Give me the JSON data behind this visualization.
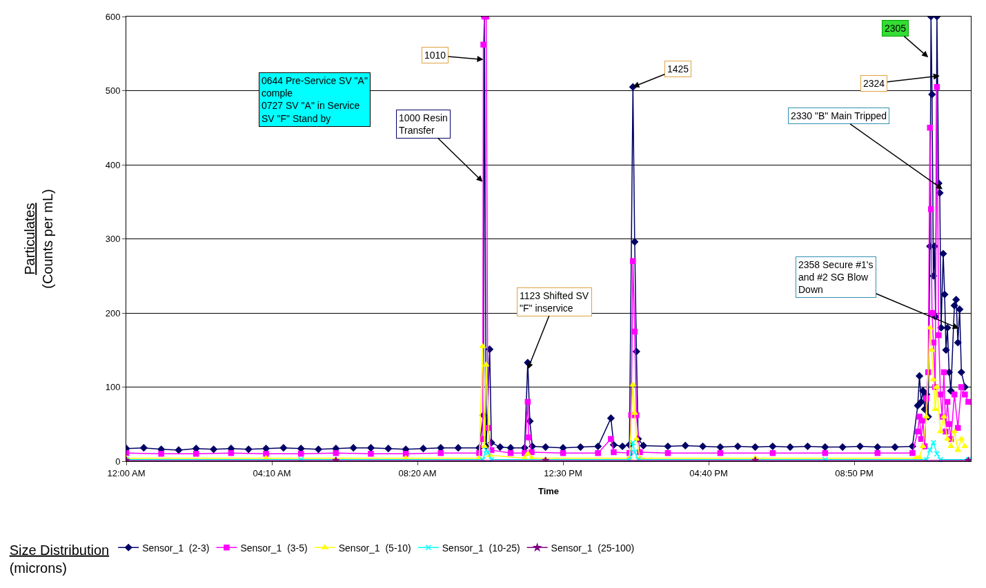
{
  "chart_data": {
    "type": "line",
    "xlabel": "Time",
    "ylabel": "Particulates\n(Counts per mL)",
    "legend_title": "Size Distribution\n(microns)",
    "xlim": [
      0,
      24.17
    ],
    "xticks": [
      {
        "value": 0,
        "label": "12:00 AM"
      },
      {
        "value": 4.1667,
        "label": "04:10 AM"
      },
      {
        "value": 8.3333,
        "label": "08:20 AM"
      },
      {
        "value": 12.5,
        "label": "12:30 PM"
      },
      {
        "value": 16.6667,
        "label": "04:40 PM"
      },
      {
        "value": 20.8333,
        "label": "08:50 PM"
      }
    ],
    "ylim": [
      0,
      600
    ],
    "yticks": [
      0,
      100,
      200,
      300,
      400,
      500,
      600
    ],
    "grid": "y",
    "legend": "bottom",
    "series": [
      {
        "name": "Sensor_1  (2-3)",
        "color": "#000066",
        "marker": "diamond",
        "x": [
          0,
          0.5,
          1,
          1.5,
          2,
          2.5,
          3,
          3.5,
          4,
          4.5,
          5,
          5.5,
          6,
          6.5,
          7,
          7.5,
          8,
          8.5,
          9,
          9.5,
          10.1,
          10.22,
          10.25,
          10.3,
          10.4,
          10.45,
          10.7,
          11.0,
          11.4,
          11.49,
          11.55,
          11.62,
          12,
          12.5,
          13,
          13.5,
          13.87,
          13.95,
          14.2,
          14.4,
          14.5,
          14.55,
          14.6,
          14.65,
          14.8,
          15.5,
          16,
          16.5,
          17,
          17.5,
          18,
          18.5,
          19,
          19.5,
          20,
          20.5,
          21,
          21.5,
          22,
          22.5,
          22.65,
          22.7,
          22.75,
          22.8,
          22.85,
          22.9,
          22.95,
          23.0,
          23.03,
          23.06,
          23.1,
          23.13,
          23.16,
          23.2,
          23.25,
          23.28,
          23.32,
          23.38,
          23.42,
          23.46,
          23.5,
          23.55,
          23.6,
          23.7,
          23.75,
          23.8,
          23.85,
          23.9,
          24.0
        ],
        "values": [
          17,
          18,
          16,
          15,
          17,
          16,
          17,
          16,
          17,
          18,
          17,
          16,
          17,
          18,
          18,
          17,
          16,
          17,
          18,
          18,
          18,
          62,
          600,
          20,
          151,
          25,
          19,
          18,
          18,
          133,
          54,
          20,
          19,
          18,
          19,
          20,
          58,
          22,
          20,
          22,
          505,
          296,
          148,
          30,
          21,
          20,
          21,
          20,
          19,
          20,
          19,
          20,
          19,
          20,
          19,
          19,
          20,
          19,
          19,
          20,
          75,
          115,
          80,
          95,
          70,
          90,
          60,
          290,
          600,
          495,
          250,
          290,
          195,
          600,
          375,
          362,
          180,
          280,
          225,
          150,
          180,
          120,
          95,
          210,
          218,
          160,
          205,
          120,
          100
        ]
      },
      {
        "name": "Sensor_1  (3-5)",
        "color": "#ff00ff",
        "marker": "square",
        "x": [
          0,
          1,
          2,
          3,
          4,
          5,
          6,
          7,
          8,
          9,
          10.1,
          10.2,
          10.22,
          10.25,
          10.3,
          10.35,
          10.45,
          11,
          11.4,
          11.49,
          11.52,
          11.6,
          12.5,
          13.5,
          13.87,
          13.95,
          14.4,
          14.45,
          14.5,
          14.55,
          14.6,
          14.7,
          15.5,
          17,
          18.5,
          20,
          21.5,
          22.5,
          22.65,
          22.7,
          22.75,
          22.8,
          22.85,
          22.9,
          22.95,
          23.0,
          23.03,
          23.06,
          23.1,
          23.15,
          23.2,
          23.25,
          23.3,
          23.35,
          23.4,
          23.45,
          23.5,
          23.55,
          23.6,
          23.7,
          23.8,
          23.9,
          24.0,
          24.1
        ],
        "values": [
          11,
          10,
          10,
          11,
          10,
          10,
          11,
          10,
          10,
          11,
          11,
          30,
          562,
          600,
          600,
          45,
          15,
          11,
          11,
          80,
          32,
          12,
          11,
          11,
          30,
          12,
          11,
          62,
          270,
          175,
          62,
          12,
          11,
          11,
          11,
          11,
          11,
          11,
          40,
          60,
          30,
          55,
          20,
          85,
          120,
          450,
          340,
          200,
          160,
          100,
          505,
          170,
          90,
          60,
          120,
          40,
          80,
          50,
          30,
          90,
          45,
          100,
          90,
          80
        ]
      },
      {
        "name": "Sensor_1  (5-10)",
        "color": "#ffff00",
        "marker": "triangle",
        "x": [
          0,
          4,
          8,
          10.1,
          10.2,
          10.25,
          10.3,
          10.4,
          11.4,
          11.49,
          11.6,
          14.4,
          14.5,
          14.55,
          14.6,
          14.7,
          18,
          22.6,
          22.7,
          22.8,
          22.9,
          23.0,
          23.05,
          23.1,
          23.15,
          23.2,
          23.3,
          23.4,
          23.5,
          23.6,
          23.7,
          23.8,
          23.9,
          24.0
        ],
        "values": [
          4,
          4,
          4,
          4,
          155,
          20,
          130,
          8,
          4,
          10,
          4,
          4,
          103,
          65,
          30,
          4,
          4,
          4,
          5,
          20,
          60,
          180,
          150,
          110,
          70,
          100,
          40,
          60,
          30,
          20,
          40,
          15,
          30,
          20
        ]
      },
      {
        "name": "Sensor_1  (10-25)",
        "color": "#00ffff",
        "marker": "cross",
        "x": [
          0,
          5,
          10.2,
          10.3,
          10.35,
          10.45,
          14.4,
          14.5,
          14.55,
          14.65,
          20,
          22.9,
          23.0,
          23.1,
          23.2,
          23.3,
          24.1
        ],
        "values": [
          2,
          2,
          2,
          15,
          12,
          2,
          2,
          25,
          12,
          2,
          2,
          2,
          15,
          25,
          10,
          2,
          2
        ]
      },
      {
        "name": "Sensor_1  (25-100)",
        "color": "#800080",
        "marker": "star",
        "x": [
          0,
          6,
          12,
          18,
          24.1
        ],
        "values": [
          1,
          1,
          1,
          1,
          1
        ]
      }
    ],
    "annotations": [
      "0644 Pre-Service SV \"A\"\ncomple\n0727 SV \"A\" in Service\nSV \"F\" Stand by",
      {
        "text": "1010",
        "x": 10.22,
        "y": 542
      },
      {
        "text": "1000 Resin\nTransfer",
        "x": 10.2,
        "y": 377
      },
      {
        "text": "1123 Shifted SV\n\"F\" inservice",
        "x": 11.49,
        "y": 124
      },
      {
        "text": "1425",
        "x": 14.5,
        "y": 505
      },
      {
        "text": "2305",
        "x": 22.95,
        "y": 545
      },
      {
        "text": "2324",
        "x": 23.28,
        "y": 520
      },
      {
        "text": "2330 \"B\" Main Tripped",
        "x": 23.36,
        "y": 367
      },
      {
        "text": "2358 Secure #1's\nand #2 SG Blow\nDown",
        "x": 23.83,
        "y": 179
      }
    ]
  }
}
